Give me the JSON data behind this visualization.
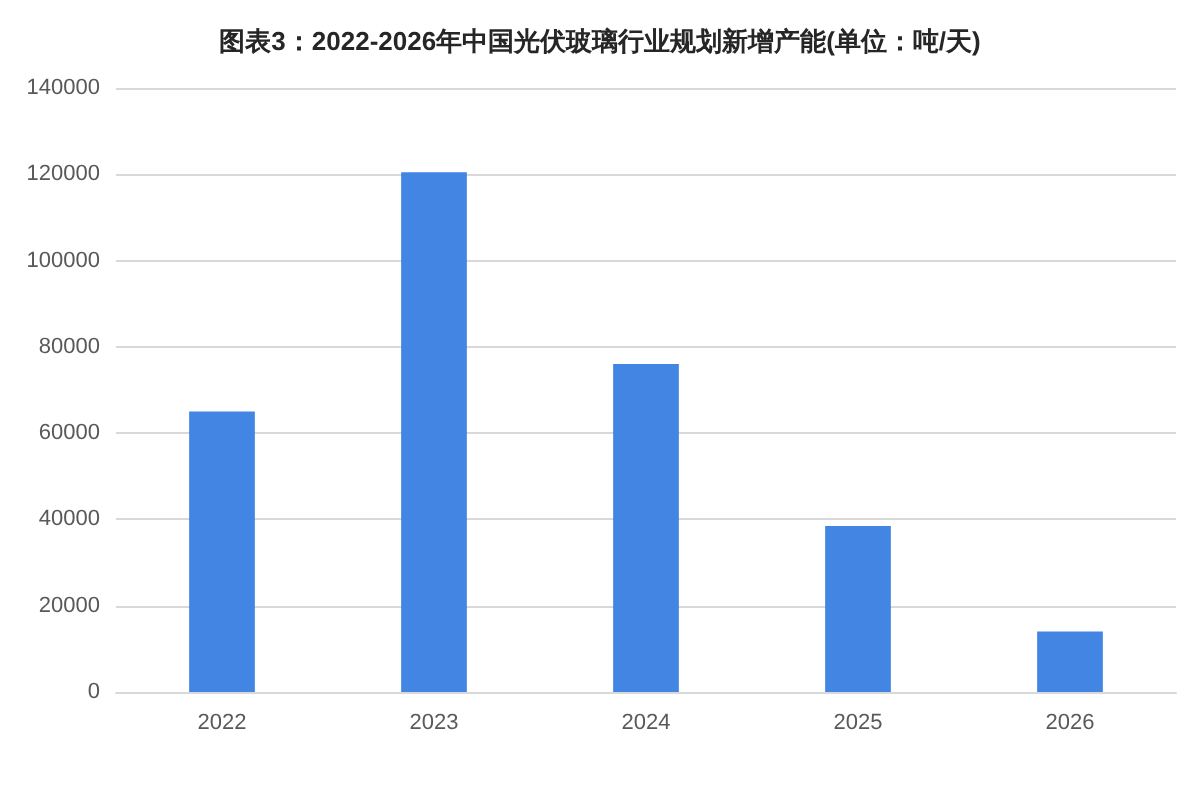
{
  "chart_data": {
    "type": "bar",
    "title": "图表3：2022-2026年中国光伏玻璃行业规划新增产能(单位：吨/天)",
    "categories": [
      "2022",
      "2023",
      "2024",
      "2025",
      "2026"
    ],
    "values": [
      65000,
      120500,
      76000,
      38500,
      14000
    ],
    "color": "#4285e3",
    "ylim": [
      0,
      140000
    ],
    "yticks": [
      0,
      20000,
      40000,
      60000,
      80000,
      100000,
      120000,
      140000
    ],
    "grid": "y"
  }
}
